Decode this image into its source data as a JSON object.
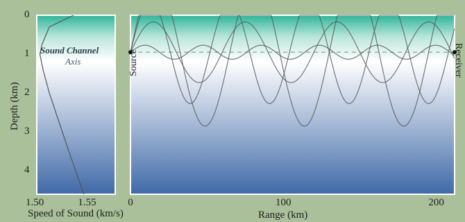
{
  "colors": {
    "background": "#a9c09a",
    "surface_water": "#2fb59a",
    "deep_water": "#4069a8",
    "ray_line": "#555555",
    "axis_dash": "#9a9a9a",
    "panel_border": "#ffffff"
  },
  "depth_axis": {
    "title": "Depth (km)",
    "ticks": [
      "0",
      "1",
      "2",
      "3",
      "4"
    ],
    "values": [
      0,
      1,
      2,
      3,
      4
    ],
    "range": [
      0,
      4.6
    ]
  },
  "speed_panel": {
    "xlabel": "Speed of Sound (km/s)",
    "ticks": [
      "1.50",
      "1.55"
    ],
    "tick_values": [
      1.5,
      1.55
    ],
    "x_range": [
      1.5,
      1.575
    ],
    "profile": [
      [
        1.535,
        0
      ],
      [
        1.512,
        0.3
      ],
      [
        1.505,
        0.75
      ],
      [
        1.503,
        1.0
      ],
      [
        1.506,
        1.4
      ],
      [
        1.512,
        2.0
      ],
      [
        1.522,
        2.8
      ],
      [
        1.532,
        3.6
      ],
      [
        1.545,
        4.6
      ]
    ],
    "channel_label_line1": "Sound Channel",
    "channel_label_line2": "Axis"
  },
  "range_panel": {
    "xlabel": "Range (km)",
    "ticks": [
      "0",
      "100",
      "200"
    ],
    "tick_values": [
      0,
      100,
      200
    ],
    "x_range": [
      0,
      212
    ],
    "source_label": "Source",
    "receiver_label": "Receiver",
    "axis_depth": 0.95,
    "rays": [
      {
        "amplitude": 0.78,
        "wavelength": 60
      },
      {
        "amplitude": 1.32,
        "wavelength": 52
      },
      {
        "amplitude": 1.9,
        "wavelength": 65
      },
      {
        "amplitude": 0.18,
        "wavelength": 38
      }
    ]
  }
}
